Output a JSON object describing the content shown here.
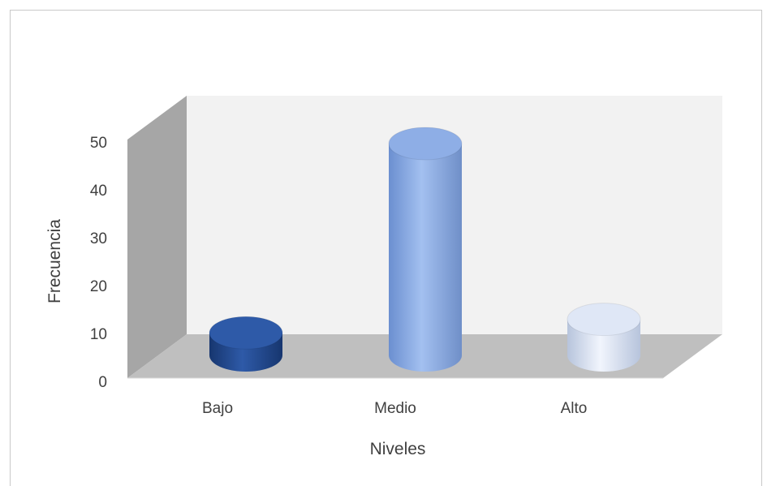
{
  "chart_data": {
    "type": "bar",
    "style": "3d-cylinder",
    "categories": [
      "Bajo",
      "Medio",
      "Alto"
    ],
    "values": [
      5,
      47,
      8
    ],
    "colors": [
      "#2e5aa8",
      "#8eaee6",
      "#dfe7f6"
    ],
    "xlabel": "Niveles",
    "ylabel": "Frecuencia",
    "ylim": [
      0,
      50
    ],
    "yticks": [
      "0",
      "10",
      "20",
      "30",
      "40",
      "50"
    ],
    "grid": false
  }
}
